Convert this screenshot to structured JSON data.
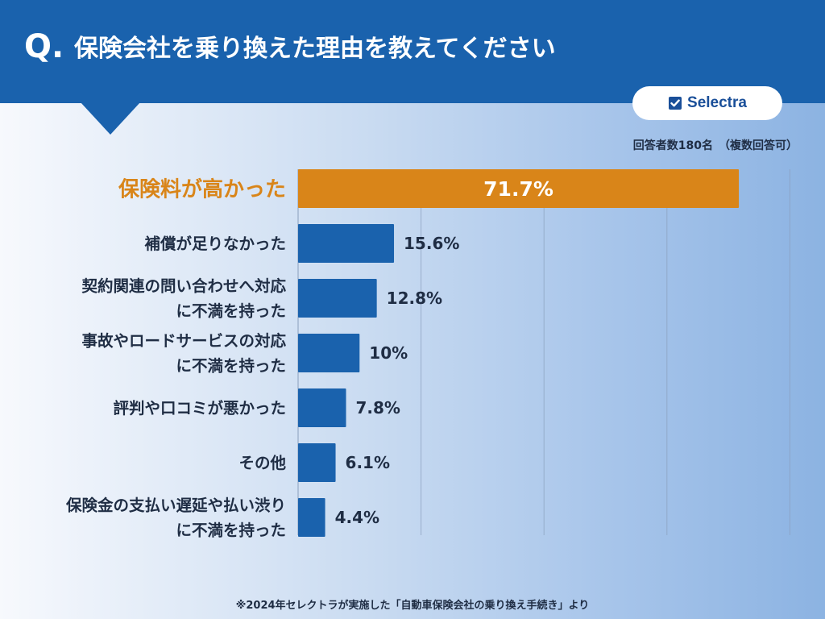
{
  "header": {
    "q_mark": "Q.",
    "title": "保険会社を乗り換えた理由を教えてください"
  },
  "logo": {
    "text": "Selectra",
    "icon": "check-square-icon"
  },
  "respondents": "回答者数180名　（複数回答可）",
  "source": "※2024年セレクトラが実施した「自動車保険会社の乗り換え手続き」より",
  "colors": {
    "header": "#1a62ad",
    "bar": "#1a62ad",
    "highlight_bar": "#d98519",
    "highlight_label": "#d98519",
    "text": "#1f2d44"
  },
  "chart_data": {
    "type": "bar",
    "orientation": "horizontal",
    "title": "保険会社を乗り換えた理由を教えてください",
    "unit": "%",
    "xlim": [
      0,
      100
    ],
    "grid": true,
    "highlight_index": 0,
    "categories": [
      [
        "保険料が高かった"
      ],
      [
        "補償が足りなかった"
      ],
      [
        "契約関連の問い合わせへ対応",
        "に不満を持った"
      ],
      [
        "事故やロードサービスの対応",
        "に不満を持った"
      ],
      [
        "評判や口コミが悪かった"
      ],
      [
        "その他"
      ],
      [
        "保険金の支払い遅延や払い渋り",
        "に不満を持った"
      ]
    ],
    "values": [
      71.7,
      15.6,
      12.8,
      10,
      7.8,
      6.1,
      4.4
    ],
    "value_labels": [
      "71.7%",
      "15.6%",
      "12.8%",
      "10%",
      "7.8%",
      "6.1%",
      "4.4%"
    ]
  }
}
